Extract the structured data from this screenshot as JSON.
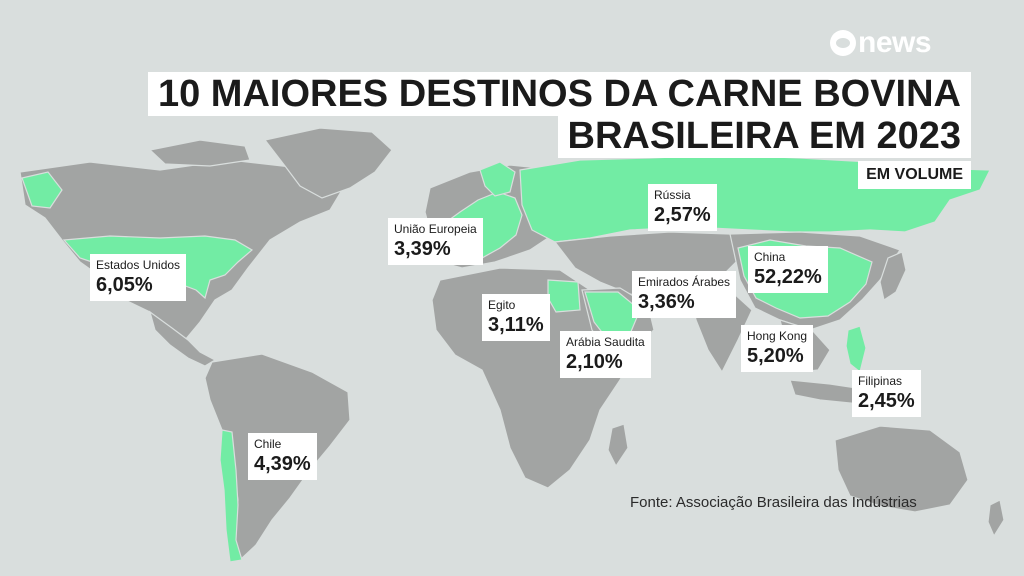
{
  "logo": {
    "brand_text": "news",
    "mark_icon": "globo-mark-icon"
  },
  "title": {
    "line1": "10 MAIORES DESTINOS DA CARNE BOVINA",
    "line2": "BRASILEIRA EM 2023"
  },
  "subtitle": "EM VOLUME",
  "colors": {
    "highlight": "#72eca4",
    "land": "#a2a4a3",
    "ocean": "#d9dedd"
  },
  "destinations": [
    {
      "name": "Estados Unidos",
      "share": "6,05%"
    },
    {
      "name": "União Europeia",
      "share": "3,39%"
    },
    {
      "name": "Rússia",
      "share": "2,57%"
    },
    {
      "name": "China",
      "share": "52,22%"
    },
    {
      "name": "Emirados Árabes",
      "share": "3,36%"
    },
    {
      "name": "Egito",
      "share": "3,11%"
    },
    {
      "name": "Arábia Saudita",
      "share": "2,10%"
    },
    {
      "name": "Hong Kong",
      "share": "5,20%"
    },
    {
      "name": "Filipinas",
      "share": "2,45%"
    },
    {
      "name": "Chile",
      "share": "4,39%"
    }
  ],
  "source": "Fonte:  Associação Brasileira das Indústrias"
}
